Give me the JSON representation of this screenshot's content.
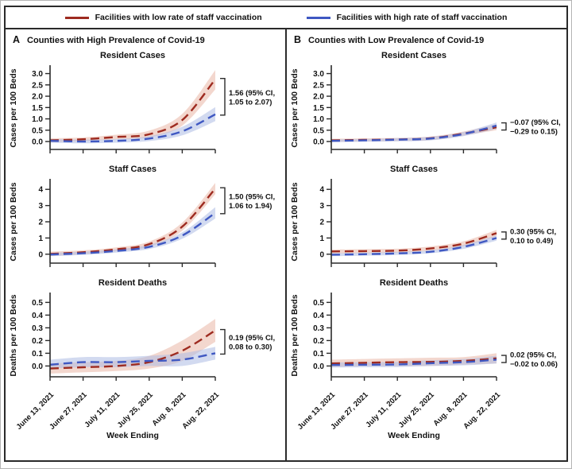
{
  "figure": {
    "legend": [
      {
        "label": "Facilities with low rate of staff vaccination",
        "color": "#9e2b20"
      },
      {
        "label": "Facilities with high rate of staff vaccination",
        "color": "#3f58c2"
      }
    ],
    "colors": {
      "low_line": "#9e2b20",
      "high_line": "#3f58c2",
      "low_band": "#e9b7a5",
      "high_band": "#adbce3",
      "text": "#111111",
      "border": "#2a2a2a"
    },
    "panels": [
      {
        "id": "A",
        "title": "Counties with High Prevalence of Covid-19"
      },
      {
        "id": "B",
        "title": "Counties with Low Prevalence of Covid-19"
      }
    ],
    "x_axis_title": "Week Ending"
  },
  "chart_data": [
    {
      "type": "line",
      "panel": "A",
      "title": "Resident Cases",
      "ylabel": "Cases per 100 Beds",
      "categories": [
        "June 13, 2021",
        "June 27, 2021",
        "July 11, 2021",
        "July 25, 2021",
        "Aug. 8, 2021",
        "Aug. 22, 2021"
      ],
      "ylim": [
        -0.35,
        3.3
      ],
      "yticks": [
        0,
        0.5,
        1,
        1.5,
        2,
        2.5,
        3
      ],
      "ytick_labels": [
        "0.0",
        "0.5",
        "1.0",
        "1.5",
        "2.0",
        "2.5",
        "3.0"
      ],
      "series": [
        {
          "name": "Facilities with low rate of staff vaccination",
          "key": "low",
          "values": [
            0.05,
            0.1,
            0.2,
            0.32,
            0.95,
            2.75
          ],
          "ci_lower": [
            -0.04,
            0.02,
            0.1,
            0.18,
            0.7,
            2.3
          ],
          "ci_upper": [
            0.14,
            0.18,
            0.3,
            0.48,
            1.22,
            3.15
          ]
        },
        {
          "name": "Facilities with high rate of staff vaccination",
          "key": "high",
          "values": [
            0.03,
            0.0,
            0.03,
            0.13,
            0.45,
            1.2
          ],
          "ci_lower": [
            -0.05,
            -0.08,
            -0.05,
            0.02,
            0.27,
            0.9
          ],
          "ci_upper": [
            0.11,
            0.08,
            0.11,
            0.24,
            0.65,
            1.52
          ]
        }
      ],
      "annotation": {
        "line1": "1.56 (95% CI,",
        "line2": "1.05 to 2.07)"
      }
    },
    {
      "type": "line",
      "panel": "A",
      "title": "Staff Cases",
      "ylabel": "Cases per 100 Beds",
      "categories": [
        "June 13, 2021",
        "June 27, 2021",
        "July 11, 2021",
        "July 25, 2021",
        "Aug. 8, 2021",
        "Aug. 22, 2021"
      ],
      "ylim": [
        -0.55,
        4.55
      ],
      "yticks": [
        0,
        1,
        2,
        3,
        4
      ],
      "ytick_labels": [
        "0",
        "1",
        "2",
        "3",
        "4"
      ],
      "series": [
        {
          "name": "Facilities with low rate of staff vaccination",
          "key": "low",
          "values": [
            0.02,
            0.12,
            0.3,
            0.62,
            1.7,
            4.05
          ],
          "ci_lower": [
            -0.12,
            0.0,
            0.18,
            0.46,
            1.45,
            3.7
          ],
          "ci_upper": [
            0.16,
            0.24,
            0.42,
            0.78,
            1.95,
            4.4
          ]
        },
        {
          "name": "Facilities with high rate of staff vaccination",
          "key": "high",
          "values": [
            -0.02,
            0.06,
            0.2,
            0.45,
            1.15,
            2.55
          ],
          "ci_lower": [
            -0.12,
            -0.04,
            0.1,
            0.32,
            0.95,
            2.2
          ],
          "ci_upper": [
            0.08,
            0.16,
            0.3,
            0.58,
            1.35,
            2.9
          ]
        }
      ],
      "annotation": {
        "line1": "1.50 (95% CI,",
        "line2": "1.06 to 1.94)"
      }
    },
    {
      "type": "line",
      "panel": "A",
      "title": "Resident Deaths",
      "ylabel": "Deaths per 100 Beds",
      "categories": [
        "June 13, 2021",
        "June 27, 2021",
        "July 11, 2021",
        "July 25, 2021",
        "Aug. 8, 2021",
        "Aug. 22, 2021"
      ],
      "ylim": [
        -0.085,
        0.565
      ],
      "yticks": [
        0,
        0.1,
        0.2,
        0.3,
        0.4,
        0.5
      ],
      "ytick_labels": [
        "0.0",
        "0.1",
        "0.2",
        "0.3",
        "0.4",
        "0.5"
      ],
      "series": [
        {
          "name": "Facilities with low rate of staff vaccination",
          "key": "low",
          "values": [
            -0.02,
            -0.01,
            0.0,
            0.03,
            0.12,
            0.28
          ],
          "ci_lower": [
            -0.06,
            -0.05,
            -0.04,
            -0.02,
            0.04,
            0.19
          ],
          "ci_upper": [
            0.02,
            0.03,
            0.04,
            0.08,
            0.2,
            0.37
          ]
        },
        {
          "name": "Facilities with high rate of staff vaccination",
          "key": "high",
          "values": [
            0.01,
            0.03,
            0.03,
            0.04,
            0.05,
            0.1
          ],
          "ci_lower": [
            -0.02,
            -0.01,
            -0.01,
            0.0,
            0.0,
            0.05
          ],
          "ci_upper": [
            0.05,
            0.07,
            0.07,
            0.08,
            0.1,
            0.15
          ]
        }
      ],
      "annotation": {
        "line1": "0.19 (95% CI,",
        "line2": "0.08 to 0.30)"
      }
    },
    {
      "type": "line",
      "panel": "B",
      "title": "Resident Cases",
      "ylabel": "Cases per 100 Beds",
      "categories": [
        "June 13, 2021",
        "June 27, 2021",
        "July 11, 2021",
        "July 25, 2021",
        "Aug. 8, 2021",
        "Aug. 22, 2021"
      ],
      "ylim": [
        -0.35,
        3.3
      ],
      "yticks": [
        0,
        0.5,
        1,
        1.5,
        2,
        2.5,
        3
      ],
      "ytick_labels": [
        "0.0",
        "0.5",
        "1.0",
        "1.5",
        "2.0",
        "2.5",
        "3.0"
      ],
      "series": [
        {
          "name": "Facilities with low rate of staff vaccination",
          "key": "low",
          "values": [
            0.05,
            0.07,
            0.09,
            0.14,
            0.35,
            0.63
          ],
          "ci_lower": [
            -0.02,
            0.0,
            0.02,
            0.06,
            0.26,
            0.5
          ],
          "ci_upper": [
            0.12,
            0.14,
            0.16,
            0.22,
            0.44,
            0.76
          ]
        },
        {
          "name": "Facilities with high rate of staff vaccination",
          "key": "high",
          "values": [
            0.03,
            0.05,
            0.08,
            0.13,
            0.33,
            0.7
          ],
          "ci_lower": [
            -0.03,
            -0.01,
            0.01,
            0.05,
            0.24,
            0.56
          ],
          "ci_upper": [
            0.09,
            0.11,
            0.15,
            0.21,
            0.42,
            0.84
          ]
        }
      ],
      "annotation": {
        "line1": "−0.07 (95% CI,",
        "line2": "−0.29 to 0.15)"
      }
    },
    {
      "type": "line",
      "panel": "B",
      "title": "Staff Cases",
      "ylabel": "Cases per 100 Beds",
      "categories": [
        "June 13, 2021",
        "June 27, 2021",
        "July 11, 2021",
        "July 25, 2021",
        "Aug. 8, 2021",
        "Aug. 22, 2021"
      ],
      "ylim": [
        -0.55,
        4.55
      ],
      "yticks": [
        0,
        1,
        2,
        3,
        4
      ],
      "ytick_labels": [
        "0",
        "1",
        "2",
        "3",
        "4"
      ],
      "series": [
        {
          "name": "Facilities with low rate of staff vaccination",
          "key": "low",
          "values": [
            0.17,
            0.19,
            0.22,
            0.35,
            0.65,
            1.3
          ],
          "ci_lower": [
            0.05,
            0.07,
            0.1,
            0.22,
            0.5,
            1.1
          ],
          "ci_upper": [
            0.29,
            0.31,
            0.34,
            0.48,
            0.8,
            1.5
          ]
        },
        {
          "name": "Facilities with high rate of staff vaccination",
          "key": "high",
          "values": [
            -0.03,
            0.0,
            0.05,
            0.15,
            0.45,
            1.0
          ],
          "ci_lower": [
            -0.12,
            -0.09,
            -0.04,
            0.06,
            0.33,
            0.84
          ],
          "ci_upper": [
            0.06,
            0.09,
            0.14,
            0.24,
            0.57,
            1.16
          ]
        }
      ],
      "annotation": {
        "line1": "0.30 (95% CI,",
        "line2": "0.10 to 0.49)"
      }
    },
    {
      "type": "line",
      "panel": "B",
      "title": "Resident Deaths",
      "ylabel": "Deaths per 100 Beds",
      "categories": [
        "June 13, 2021",
        "June 27, 2021",
        "July 11, 2021",
        "July 25, 2021",
        "Aug. 8, 2021",
        "Aug. 22, 2021"
      ],
      "ylim": [
        -0.085,
        0.565
      ],
      "yticks": [
        0,
        0.1,
        0.2,
        0.3,
        0.4,
        0.5
      ],
      "ytick_labels": [
        "0.0",
        "0.1",
        "0.2",
        "0.3",
        "0.4",
        "0.5"
      ],
      "series": [
        {
          "name": "Facilities with low rate of staff vaccination",
          "key": "low",
          "values": [
            0.02,
            0.025,
            0.03,
            0.032,
            0.04,
            0.06
          ],
          "ci_lower": [
            -0.01,
            0.0,
            0.0,
            0.0,
            0.01,
            0.02
          ],
          "ci_upper": [
            0.05,
            0.055,
            0.06,
            0.065,
            0.07,
            0.1
          ]
        },
        {
          "name": "Facilities with high rate of staff vaccination",
          "key": "high",
          "values": [
            0.008,
            0.01,
            0.012,
            0.022,
            0.03,
            0.05
          ],
          "ci_lower": [
            -0.012,
            -0.01,
            -0.008,
            0.0,
            0.005,
            0.02
          ],
          "ci_upper": [
            0.028,
            0.03,
            0.032,
            0.045,
            0.055,
            0.08
          ]
        }
      ],
      "annotation": {
        "line1": "0.02 (95% CI,",
        "line2": "−0.02 to 0.06)"
      }
    }
  ]
}
